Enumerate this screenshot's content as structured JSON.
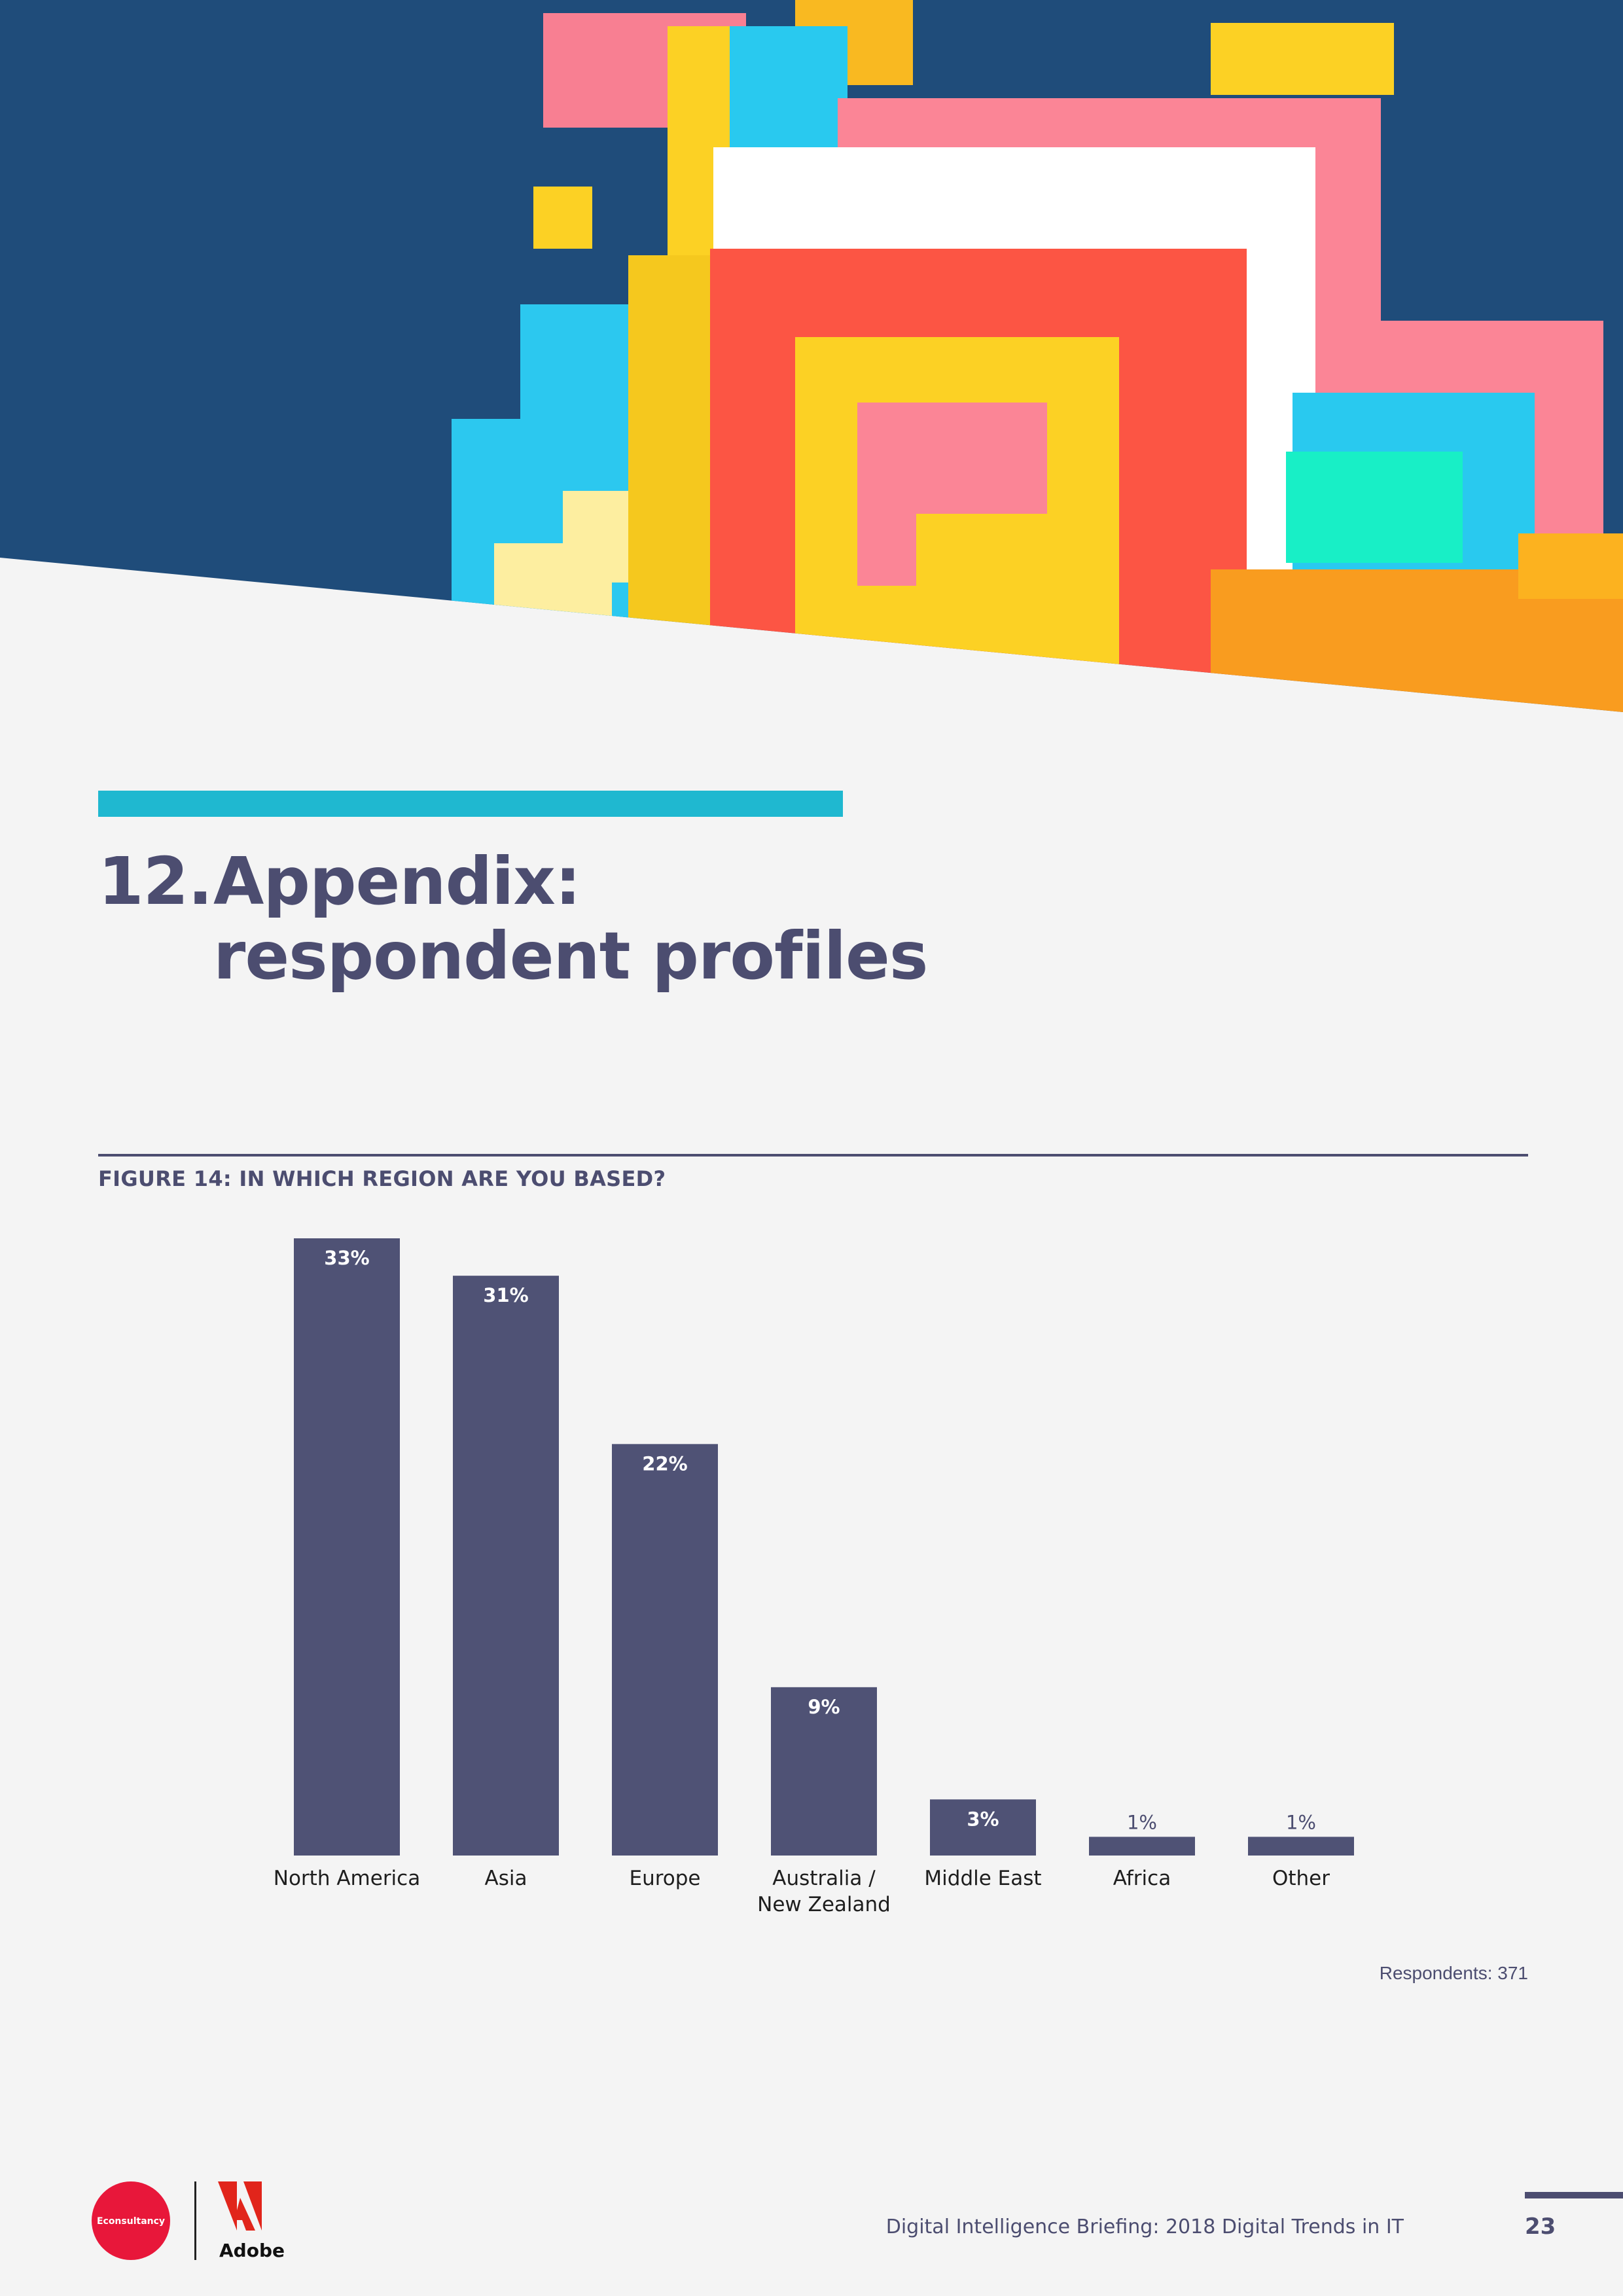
{
  "section": {
    "number": "12.",
    "title_line1": "Appendix:",
    "title_line2": "respondent profiles"
  },
  "figure": {
    "title": "FIGURE 14: IN WHICH REGION ARE YOU BASED?"
  },
  "chart_data": {
    "type": "bar",
    "title": "FIGURE 14: IN WHICH REGION ARE YOU BASED?",
    "categories": [
      "North America",
      "Asia",
      "Europe",
      "Australia / New Zealand",
      "Middle East",
      "Africa",
      "Other"
    ],
    "values": [
      33,
      31,
      22,
      9,
      3,
      1,
      1
    ],
    "value_labels": [
      "33%",
      "31%",
      "22%",
      "9%",
      "3%",
      "1%",
      "1%"
    ],
    "unit": "%",
    "xlabel": "",
    "ylabel": "",
    "ylim": [
      0,
      33
    ],
    "grid": false,
    "bar_color": "#4f5275"
  },
  "respondents": "Respondents: 371",
  "footer": {
    "econsultancy_logo": "Econsultancy",
    "adobe_logo": "Adobe",
    "publication": "Digital Intelligence Briefing: 2018 Digital Trends in IT",
    "page_number": "23"
  },
  "colors": {
    "accent": "#1fb8d0",
    "text": "#4c4d70",
    "background": "#f4f4f4",
    "econsultancy_red": "#e8173a",
    "adobe_red": "#e1251b"
  }
}
